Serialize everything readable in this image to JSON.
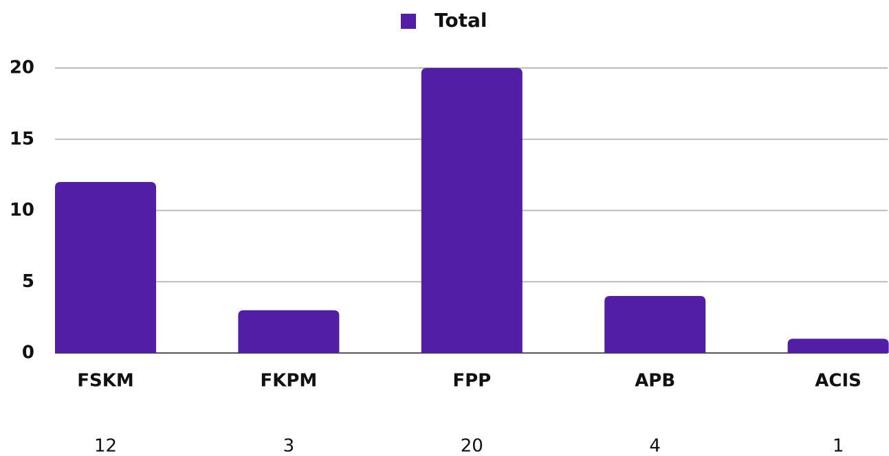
{
  "chart_data": {
    "type": "bar",
    "categories": [
      "FSKM",
      "FKPM",
      "FPP",
      "APB",
      "ACIS"
    ],
    "series": [
      {
        "name": "Total",
        "color": "#521ea6",
        "values": [
          12,
          3,
          20,
          4,
          1
        ]
      }
    ],
    "ylim": [
      0,
      20
    ],
    "yticks": [
      0,
      5,
      10,
      15,
      20
    ],
    "grid": true,
    "legend": "top"
  }
}
